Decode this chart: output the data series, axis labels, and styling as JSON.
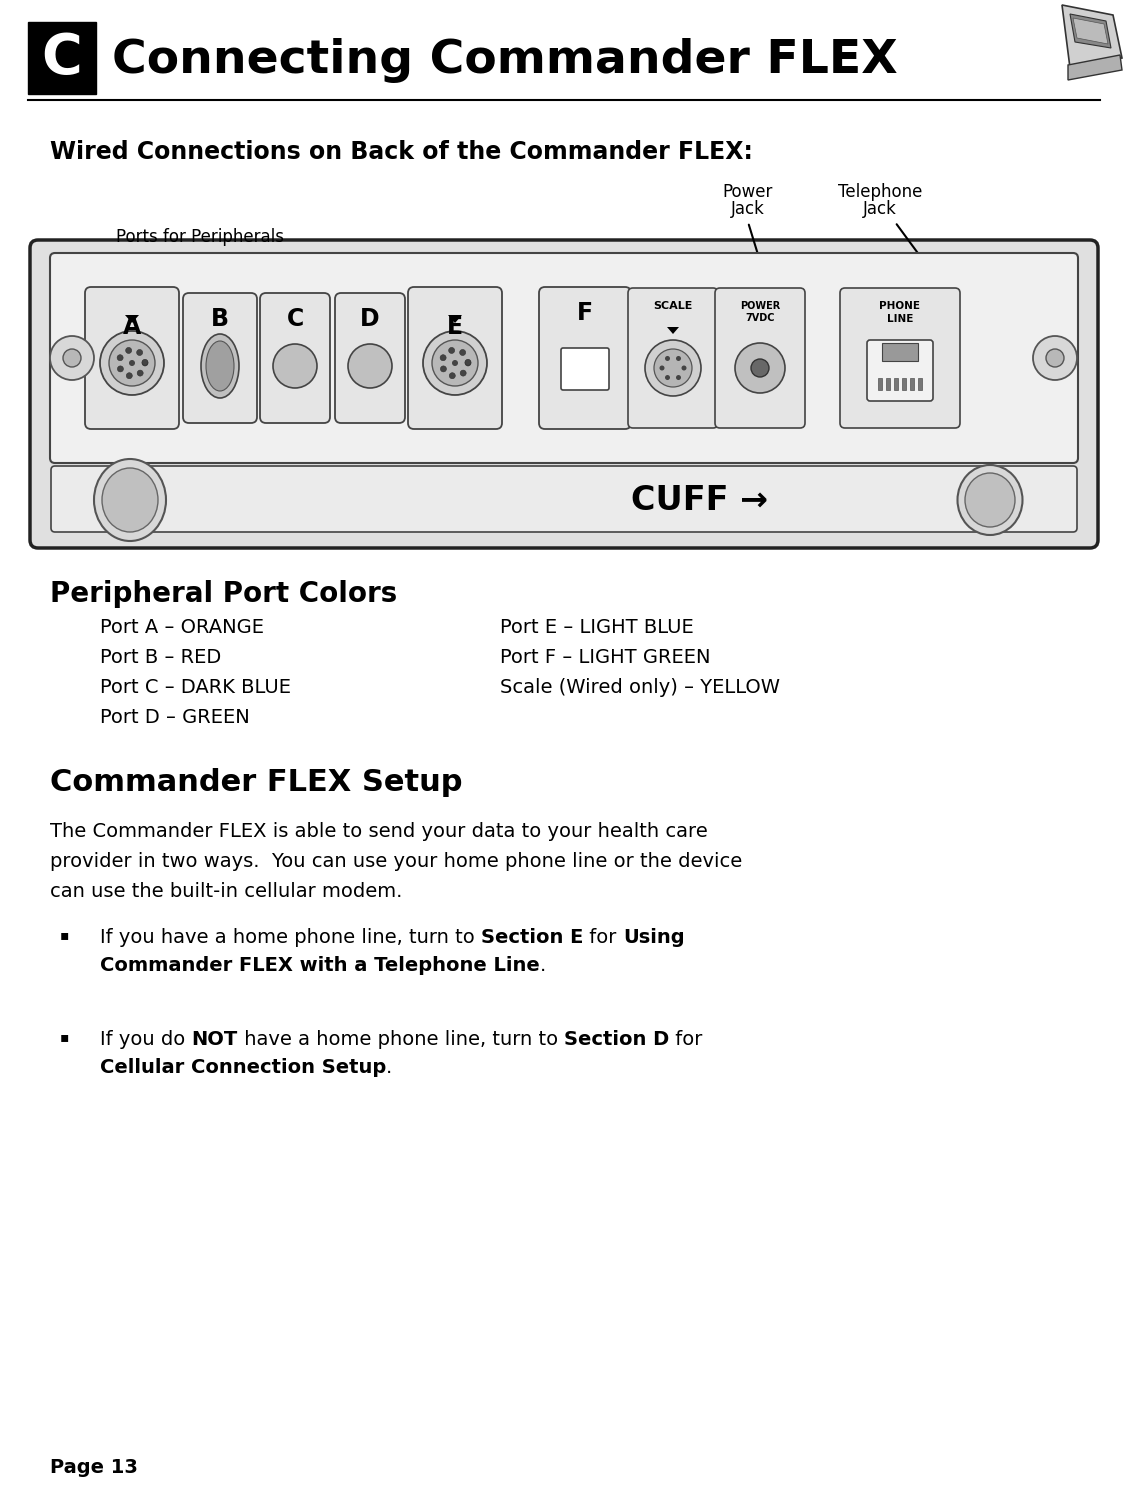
{
  "bg_color": "#ffffff",
  "title_letter": "C",
  "title_text": "Connecting Commander FLEX",
  "section1_title": "Wired Connections on Back of the Commander FLEX:",
  "ports_label": "Ports for Peripherals",
  "power_jack_label1": "Power",
  "power_jack_label2": "Jack",
  "telephone_jack_label1": "Telephone",
  "telephone_jack_label2": "Jack",
  "cuff_label": "CUFF →",
  "peripheral_colors_title": "Peripheral Port Colors",
  "port_colors_left": [
    "Port A – ORANGE",
    "Port B – RED",
    "Port C – DARK BLUE",
    "Port D – GREEN"
  ],
  "port_colors_right": [
    "Port E – LIGHT BLUE",
    "Port F – LIGHT GREEN",
    "Scale (Wired only) – YELLOW"
  ],
  "setup_title": "Commander FLEX Setup",
  "setup_para_lines": [
    "The Commander FLEX is able to send your data to your health care",
    "provider in two ways.  You can use your home phone line or the device",
    "can use the built-in cellular modem."
  ],
  "bullet_symbol": "▪",
  "page_label": "Page 13"
}
